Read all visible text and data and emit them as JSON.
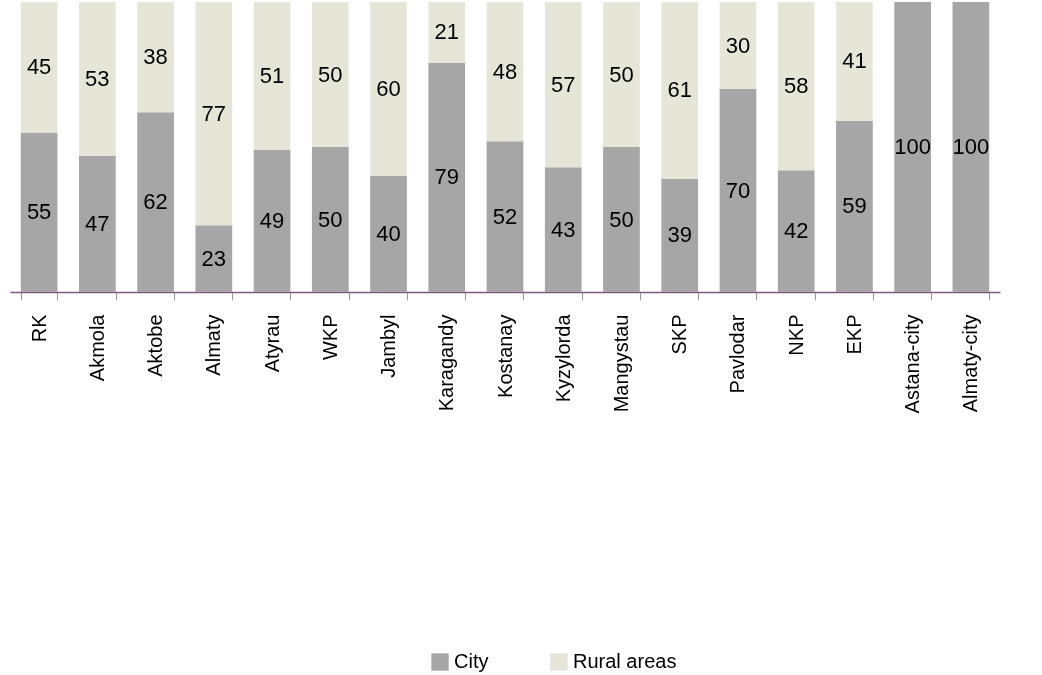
{
  "chart_data": {
    "type": "bar",
    "stacked": true,
    "data_labels": true,
    "legend": "bottom",
    "tick_labels": "x",
    "grid": false,
    "categories": [
      "RK",
      "Akmola",
      "Aktobe",
      "Almaty",
      "Atyrau",
      "WKP",
      "Jambyl",
      "Karagandy",
      "Kostanay",
      "Kyzylorda",
      "Mangystau",
      "SKP",
      "Pavlodar",
      "NKP",
      "EKP",
      "Astana-city",
      "Almaty-city"
    ],
    "series": [
      {
        "name": "City",
        "color": "#a6a6a6",
        "values": [
          55,
          47,
          62,
          23,
          49,
          50,
          40,
          79,
          52,
          43,
          50,
          39,
          70,
          42,
          59,
          100,
          100
        ]
      },
      {
        "name": "Rural areas",
        "color": "#e6e6d8",
        "values": [
          45,
          53,
          38,
          77,
          51,
          50,
          60,
          21,
          48,
          57,
          50,
          61,
          30,
          58,
          41,
          null,
          null
        ]
      }
    ]
  }
}
